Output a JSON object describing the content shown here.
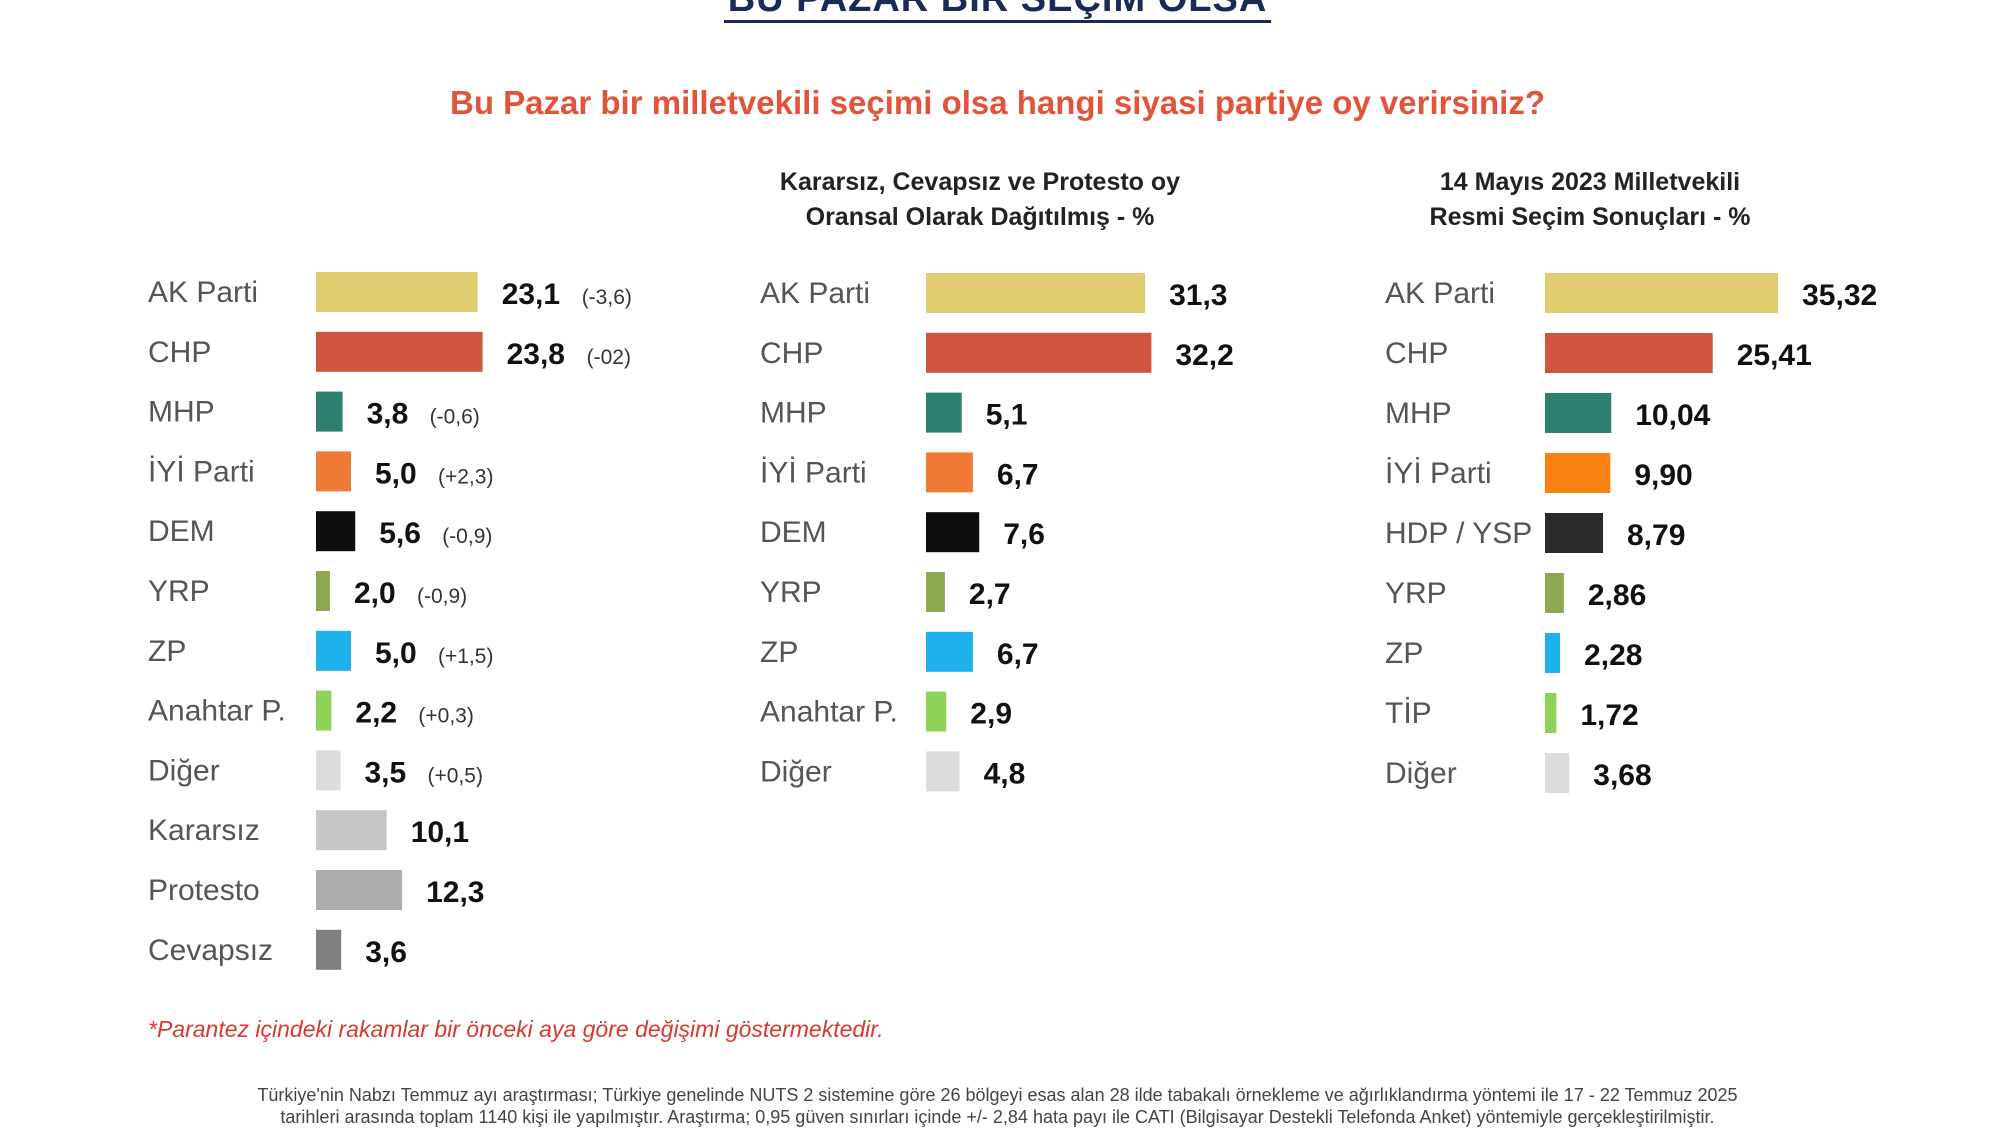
{
  "header": {
    "title": "BU PAZAR BİR SEÇİM OLSA",
    "question": "Bu Pazar bir milletvekili seçimi olsa hangi siyasi partiye oy verirsiniz?"
  },
  "colors": {
    "akp": "#e0cd72",
    "chp": "#cf5540",
    "mhp": "#2d7f6f",
    "iyi": "#ee7a36",
    "iyi_official": "#f78213",
    "dem": "#0d0d0d",
    "hdp": "#2a2a2a",
    "yrp": "#8ea84f",
    "zp": "#1fb1ec",
    "anahtar": "#8fd25a",
    "tip": "#8fd25a",
    "diger": "#dcdcdc",
    "kararsiz": "#c6c6c6",
    "protesto": "#adadad",
    "cevapsiz": "#808080"
  },
  "chart_data": [
    {
      "type": "bar",
      "orientation": "horizontal",
      "title": "",
      "categories": [
        "AK Parti",
        "CHP",
        "MHP",
        "İYİ Parti",
        "DEM",
        "YRP",
        "ZP",
        "Anahtar P.",
        "Diğer",
        "Kararsız",
        "Protesto",
        "Cevapsız"
      ],
      "values": [
        23.1,
        23.8,
        3.8,
        5.0,
        5.6,
        2.0,
        5.0,
        2.2,
        3.5,
        10.1,
        12.3,
        3.6
      ],
      "value_labels": [
        "23,1",
        "23,8",
        "3,8",
        "5,0",
        "5,6",
        "2,0",
        "5,0",
        "2,2",
        "3,5",
        "10,1",
        "12,3",
        "3,6"
      ],
      "changes": [
        "(-3,6)",
        "(-02)",
        "(-0,6)",
        "(+2,3)",
        "(-0,9)",
        "(-0,9)",
        "(+1,5)",
        "(+0,3)",
        "(+0,5)",
        "",
        "",
        ""
      ],
      "color_keys": [
        "akp",
        "chp",
        "mhp",
        "iyi",
        "dem",
        "yrp",
        "zp",
        "anahtar",
        "diger",
        "kararsiz",
        "protesto",
        "cevapsiz"
      ]
    },
    {
      "type": "bar",
      "orientation": "horizontal",
      "title": "Kararsız, Cevapsız ve Protesto oy Oransal Olarak Dağıtılmış - %",
      "title_lines": [
        "Kararsız, Cevapsız ve Protesto oy",
        "Oransal Olarak Dağıtılmış - %"
      ],
      "categories": [
        "AK Parti",
        "CHP",
        "MHP",
        "İYİ Parti",
        "DEM",
        "YRP",
        "ZP",
        "Anahtar P.",
        "Diğer"
      ],
      "values": [
        31.3,
        32.2,
        5.1,
        6.7,
        7.6,
        2.7,
        6.7,
        2.9,
        4.8
      ],
      "value_labels": [
        "31,3",
        "32,2",
        "5,1",
        "6,7",
        "7,6",
        "2,7",
        "6,7",
        "2,9",
        "4,8"
      ],
      "color_keys": [
        "akp",
        "chp",
        "mhp",
        "iyi",
        "dem",
        "yrp",
        "zp",
        "anahtar",
        "diger"
      ]
    },
    {
      "type": "bar",
      "orientation": "horizontal",
      "title": "14 Mayıs 2023 Milletvekili Resmi Seçim Sonuçları - %",
      "title_lines": [
        "14 Mayıs 2023 Milletvekili",
        "Resmi Seçim Sonuçları - %"
      ],
      "categories": [
        "AK Parti",
        "CHP",
        "MHP",
        "İYİ Parti",
        "HDP / YSP",
        "YRP",
        "ZP",
        "TİP",
        "Diğer"
      ],
      "values": [
        35.32,
        25.41,
        10.04,
        9.9,
        8.79,
        2.86,
        2.28,
        1.72,
        3.68
      ],
      "value_labels": [
        "35,32",
        "25,41",
        "10,04",
        "9,90",
        "8,79",
        "2,86",
        "2,28",
        "1,72",
        "3,68"
      ],
      "color_keys": [
        "akp",
        "chp",
        "mhp",
        "iyi_official",
        "hdp",
        "yrp",
        "zp",
        "tip",
        "diger"
      ]
    }
  ],
  "note": "*Parantez içindeki rakamlar bir önceki aya göre değişimi göstermektedir.",
  "footer": {
    "line1": "Türkiye'nin Nabzı Temmuz ayı araştırması; Türkiye genelinde NUTS 2 sistemine göre 26 bölgeyi esas alan 28 ilde tabakalı örnekleme ve ağırlıklandırma yöntemi ile 17 - 22 Temmuz 2025",
    "line2": "tarihleri arasında toplam 1140 kişi ile yapılmıştır. Araştırma; 0,95 güven sınırları içinde +/- 2,84 hata payı ile CATI (Bilgisayar Destekli Telefonda Anket) yöntemiyle gerçekleştirilmiştir."
  }
}
